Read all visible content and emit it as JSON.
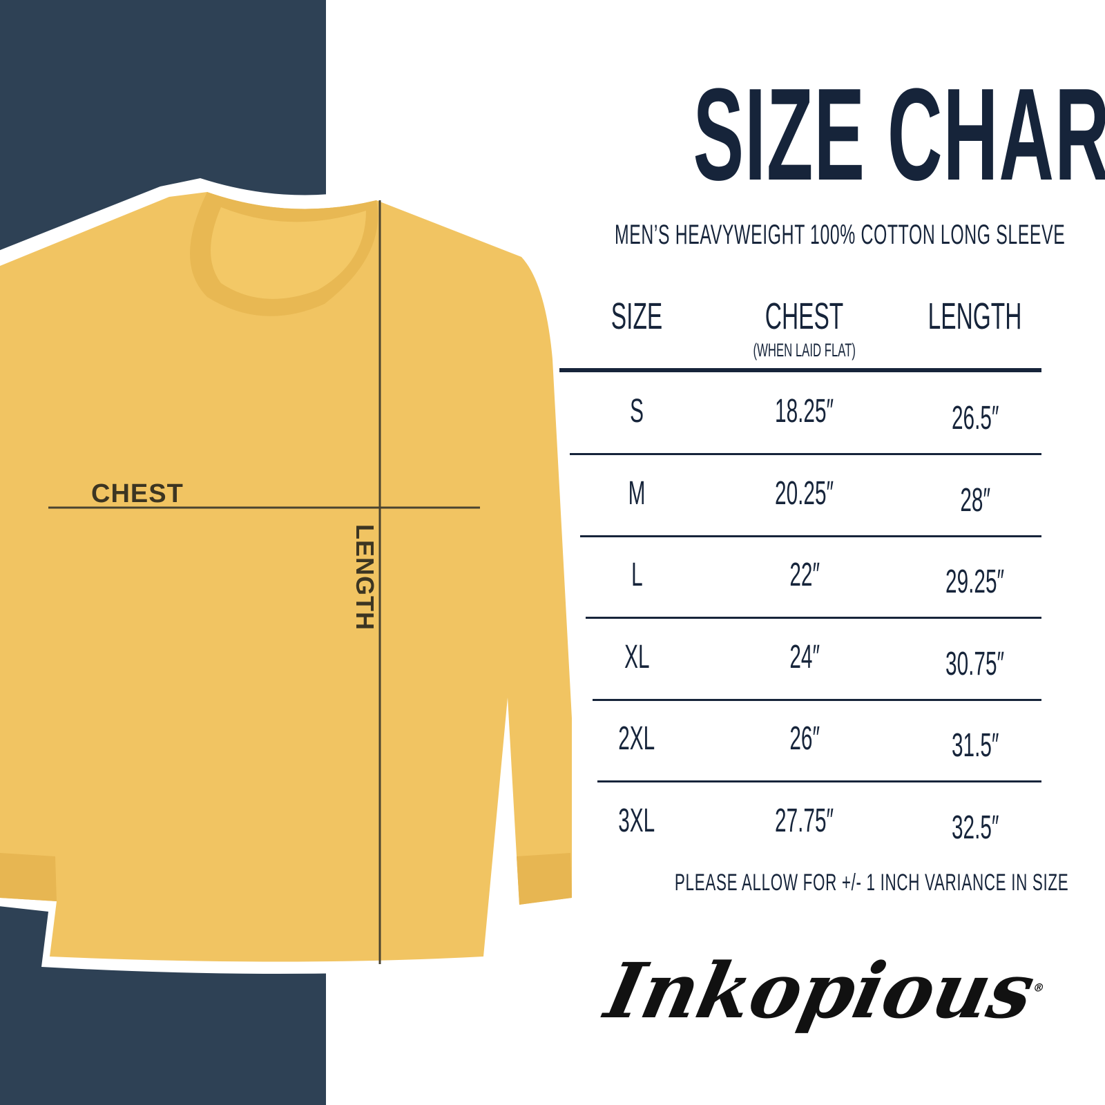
{
  "title": "SIZE CHART",
  "subtitle": "MEN’S HEAVYWEIGHT 100% COTTON LONG SLEEVE",
  "colors": {
    "navy_panel": "#2e4155",
    "text": "#16243a",
    "shirt": "#f1c462"
  },
  "diagram": {
    "chest_label": "CHEST",
    "length_label": "LENGTH"
  },
  "table": {
    "headers": {
      "size": "SIZE",
      "chest": "CHEST",
      "chest_note": "(WHEN LAID FLAT)",
      "length": "LENGTH"
    },
    "rows": [
      {
        "size": "S",
        "chest": "18.25″",
        "length": "26.5″"
      },
      {
        "size": "M",
        "chest": "20.25″",
        "length": "28″"
      },
      {
        "size": "L",
        "chest": "22″",
        "length": "29.25″"
      },
      {
        "size": "XL",
        "chest": "24″",
        "length": "30.75″"
      },
      {
        "size": "2XL",
        "chest": "26″",
        "length": "31.5″"
      },
      {
        "size": "3XL",
        "chest": "27.75″",
        "length": "32.5″"
      }
    ]
  },
  "note": "PLEASE ALLOW FOR +/- 1 INCH VARIANCE IN SIZE",
  "brand": {
    "logo_text": "Inkopious",
    "registered": "®"
  }
}
